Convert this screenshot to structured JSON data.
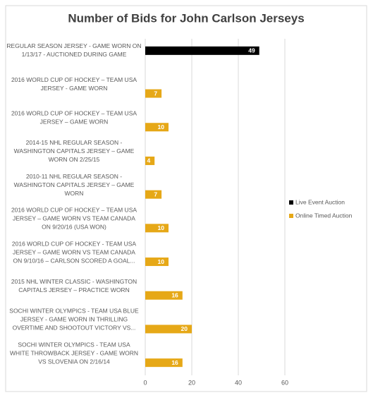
{
  "chart_data": {
    "type": "bar",
    "orientation": "horizontal",
    "title": "Number of Bids for John Carlson Jerseys",
    "categories": [
      [
        "REGULAR SEASON JERSEY - GAME WORN ON",
        "1/13/17 - AUCTIONED DURING GAME"
      ],
      [
        "2016 WORLD CUP OF HOCKEY – TEAM USA",
        "JERSEY - GAME WORN"
      ],
      [
        "2016 WORLD CUP OF HOCKEY – TEAM USA",
        "JERSEY – GAME WORN"
      ],
      [
        "2014-15 NHL REGULAR SEASON -",
        "WASHINGTON CAPITALS JERSEY – GAME",
        "WORN ON  2/25/15"
      ],
      [
        "2010-11 NHL REGULAR SEASON -",
        "WASHINGTON CAPITALS JERSEY – GAME",
        "WORN"
      ],
      [
        "2016 WORLD CUP OF HOCKEY – TEAM USA",
        "JERSEY – GAME WORN VS TEAM CANADA",
        "ON 9/20/16 (USA WON)"
      ],
      [
        "2016 WORLD CUP OF HOCKEY - TEAM USA",
        "JERSEY – GAME WORN VS TEAM CANADA",
        "ON 9/10/16 – CARLSON SCORED A GOAL..."
      ],
      [
        "2015 NHL WINTER CLASSIC - WASHINGTON",
        "CAPITALS JERSEY – PRACTICE WORN"
      ],
      [
        "SOCHI WINTER OLYMPICS - TEAM USA BLUE",
        "JERSEY - GAME WORN IN THRILLING",
        "OVERTIME AND SHOOTOUT VICTORY VS..."
      ],
      [
        "SOCHI WINTER OLYMPICS - TEAM USA",
        "WHITE THROWBACK JERSEY - GAME WORN",
        "VS SLOVENIA ON 2/16/14"
      ]
    ],
    "series": [
      {
        "name": "Live Event Auction",
        "color": "#000000",
        "values": [
          49,
          null,
          null,
          null,
          null,
          null,
          null,
          null,
          null,
          null
        ]
      },
      {
        "name": "Online Timed Auction",
        "color": "#e6a817",
        "values": [
          null,
          7,
          10,
          4,
          7,
          10,
          10,
          16,
          20,
          16
        ]
      }
    ],
    "xlim": [
      0,
      60
    ],
    "xticks": [
      0,
      20,
      40,
      60
    ],
    "grid": true,
    "legend": "right"
  }
}
